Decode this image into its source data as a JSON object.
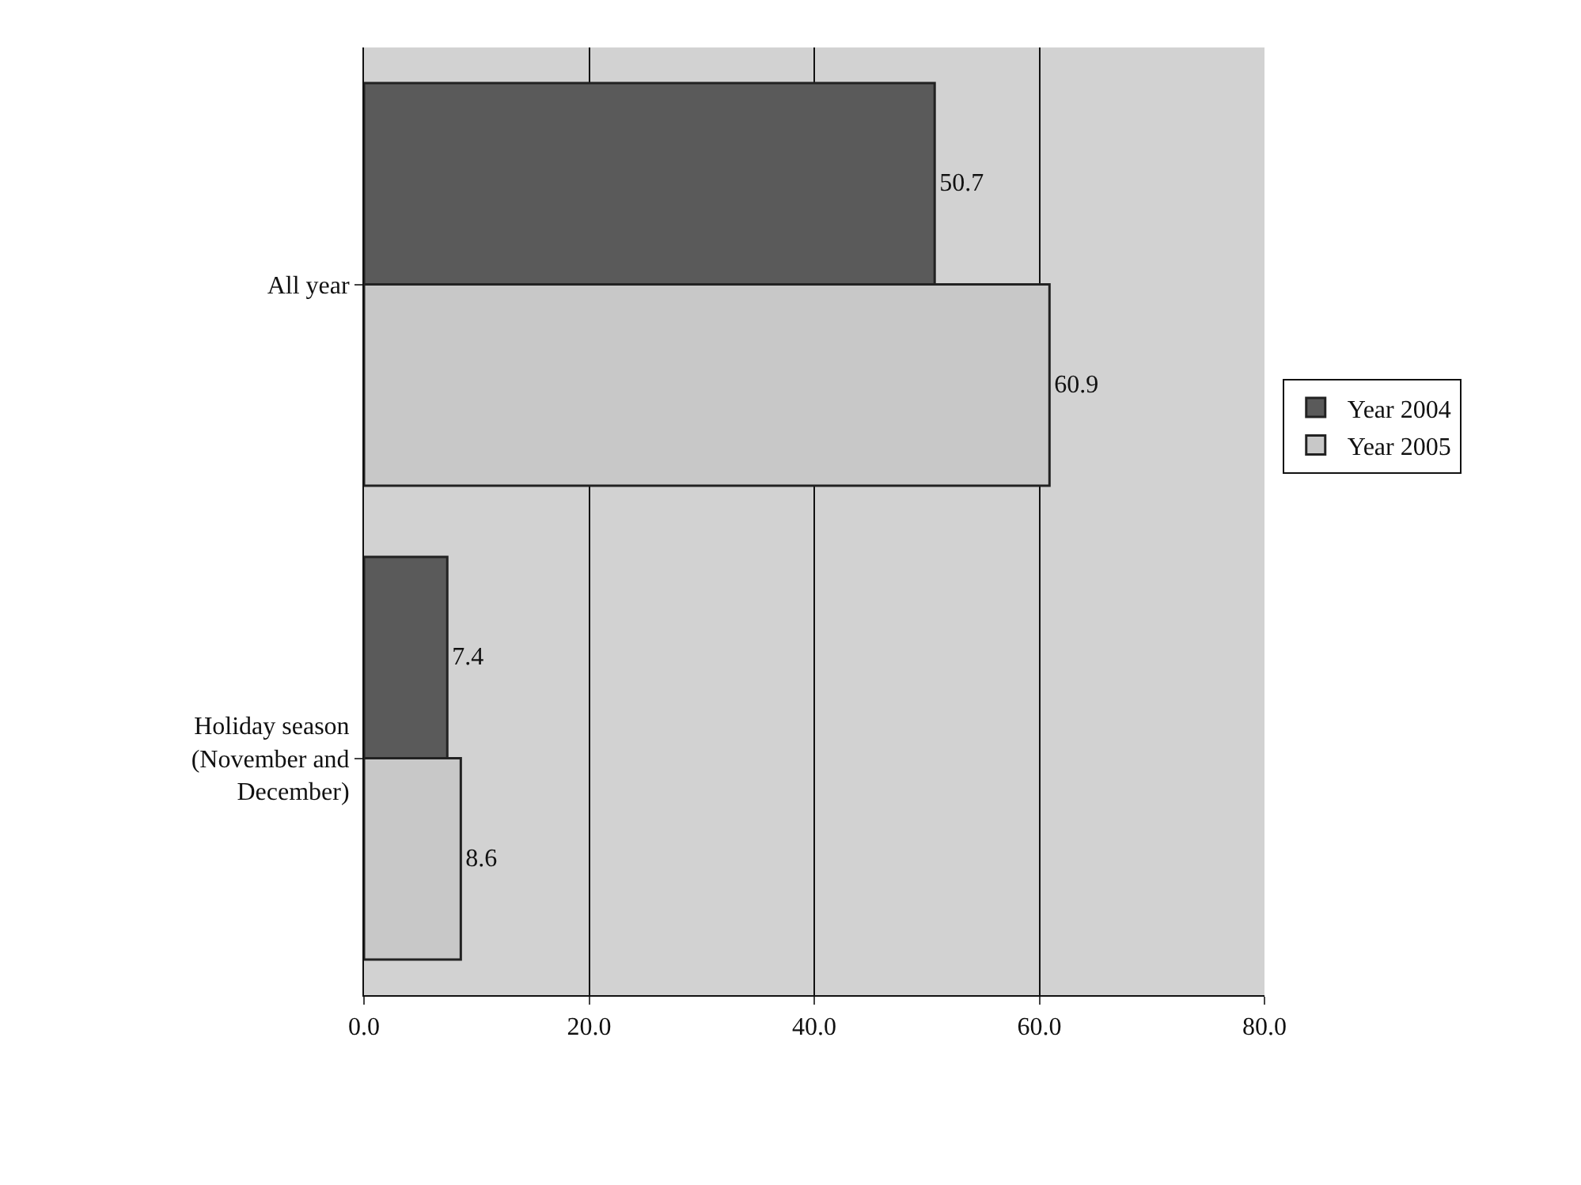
{
  "chart_data": {
    "type": "bar",
    "orientation": "horizontal",
    "categories": [
      "All year",
      "Holiday season (November and December)"
    ],
    "series": [
      {
        "name": "Year 2004",
        "color": "#5a5a5a",
        "values": [
          50.7,
          7.4
        ]
      },
      {
        "name": "Year 2005",
        "color": "#c8c8c8",
        "values": [
          60.9,
          8.6
        ]
      }
    ],
    "xlim": [
      0,
      80
    ],
    "xticks": [
      {
        "value": 0,
        "label": "0.0"
      },
      {
        "value": 20,
        "label": "20.0"
      },
      {
        "value": 40,
        "label": "40.0"
      },
      {
        "value": 60,
        "label": "60.0"
      },
      {
        "value": 80,
        "label": "80.0"
      }
    ],
    "grid": "x",
    "legend": "right",
    "data_labels": true
  }
}
